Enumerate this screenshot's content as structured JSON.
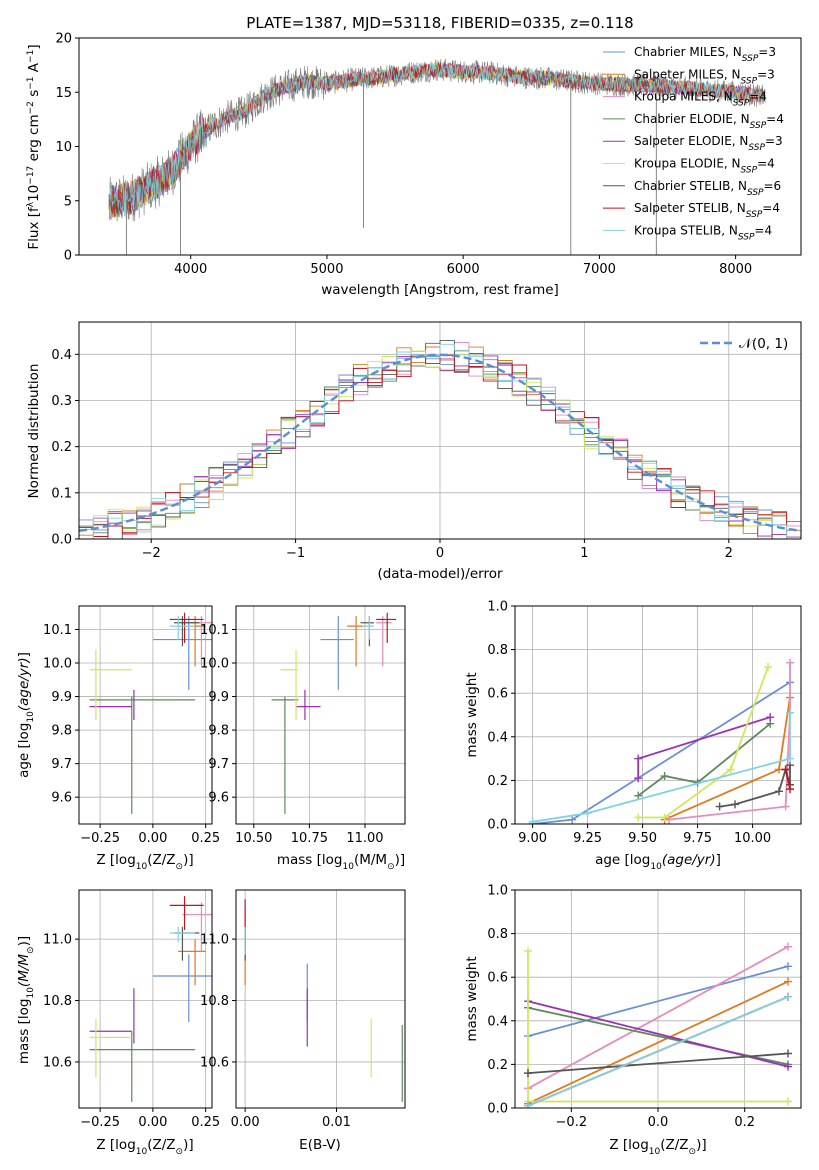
{
  "figure_title": "PLATE=1387, MJD=53118, FIBERID=0335, z=0.118",
  "colors": {
    "chabrier_miles": "#6a8fd8",
    "salpeter_miles": "#e07a1f",
    "kroupa_miles": "#e88bbf",
    "chabrier_elodie": "#5c8a5c",
    "salpeter_elodie": "#9b30b5",
    "kroupa_elodie": "#cfe85a",
    "chabrier_stelib": "#555555",
    "salpeter_stelib": "#c0151c",
    "kroupa_stelib": "#7fd3e0",
    "normal_curve": "#5b8ed6"
  },
  "legend": [
    {
      "key": "chabrier_miles",
      "pre": "Chabrier MILES, N",
      "sub": "SSP",
      "post": "=3"
    },
    {
      "key": "salpeter_miles",
      "pre": "Salpeter MILES, N",
      "sub": "SSP",
      "post": "=3"
    },
    {
      "key": "kroupa_miles",
      "pre": "Kroupa MILES, N",
      "sub": "SSP",
      "post": "=4"
    },
    {
      "key": "chabrier_elodie",
      "pre": "Chabrier ELODIE, N",
      "sub": "SSP",
      "post": "=4"
    },
    {
      "key": "salpeter_elodie",
      "pre": "Salpeter ELODIE, N",
      "sub": "SSP",
      "post": "=3"
    },
    {
      "key": "kroupa_elodie",
      "pre": "Kroupa ELODIE, N",
      "sub": "SSP",
      "post": "=4"
    },
    {
      "key": "chabrier_stelib",
      "pre": "Chabrier STELIB, N",
      "sub": "SSP",
      "post": "=6"
    },
    {
      "key": "salpeter_stelib",
      "pre": "Salpeter STELIB, N",
      "sub": "SSP",
      "post": "=4"
    },
    {
      "key": "kroupa_stelib",
      "pre": "Kroupa STELIB, N",
      "sub": "SSP",
      "post": "=4"
    }
  ],
  "chart_data": [
    {
      "type": "line",
      "name": "spectrum",
      "xlabel": "wavelength [Angstrom, rest frame]",
      "ylabel_parts": [
        "Flux [f",
        "λ",
        "10",
        "−17",
        " erg cm",
        "−2",
        " s",
        "−1",
        " A",
        "−1",
        "]"
      ],
      "xlim": [
        3180,
        8480
      ],
      "ylim": [
        0,
        20
      ],
      "xticks": [
        4000,
        5000,
        6000,
        7000,
        8000
      ],
      "yticks": [
        0,
        5,
        10,
        15,
        20
      ],
      "grid": false,
      "legend_position": "right",
      "continuum": {
        "x": [
          3400,
          3550,
          3700,
          3850,
          3950,
          4050,
          4150,
          4250,
          4400,
          4550,
          4700,
          4850,
          5000,
          5200,
          5400,
          5600,
          5800,
          6000,
          6200,
          6400,
          6600,
          6800,
          7000,
          7200,
          7400,
          7600,
          7800,
          8000,
          8200
        ],
        "y": [
          4.8,
          5.2,
          6.3,
          7.5,
          9.3,
          10.8,
          11.8,
          12.6,
          13.2,
          14.8,
          15.5,
          16.0,
          15.8,
          16.2,
          16.4,
          16.8,
          17.1,
          16.9,
          16.8,
          16.4,
          16.3,
          16.0,
          15.8,
          15.7,
          15.6,
          15.4,
          15.2,
          15.0,
          14.6
        ]
      },
      "dips": [
        {
          "x": 3528,
          "y": 0
        },
        {
          "x": 3925,
          "y": 0
        },
        {
          "x": 5268,
          "y": 2.5
        },
        {
          "x": 6790,
          "y": 0
        },
        {
          "x": 7418,
          "y": 0
        }
      ]
    },
    {
      "type": "histogram",
      "name": "residuals",
      "xlabel": "(data-model)/error",
      "ylabel": "Normed distribution",
      "xlim": [
        -2.5,
        2.5
      ],
      "ylim": [
        0,
        0.47
      ],
      "xticks": [
        -2,
        -1,
        0,
        1,
        2
      ],
      "yticks": [
        0,
        0.1,
        0.2,
        0.3,
        0.4
      ],
      "grid": true,
      "legend_position": "top-right",
      "legend_label": "𝒩(0, 1)",
      "bin_width": 0.1
    },
    {
      "type": "errorbar",
      "name": "age_vs_Z",
      "xlabel_parts": [
        "Z [log",
        "10",
        "(Z/Z",
        "⊙",
        ")]"
      ],
      "ylabel": "age  [log10(age/yr)]",
      "xlim": [
        -0.35,
        0.28
      ],
      "ylim": [
        9.52,
        10.17
      ],
      "xticks": [
        -0.25,
        0.0,
        0.25
      ],
      "yticks": [
        9.6,
        9.7,
        9.8,
        9.9,
        10.0,
        10.1
      ],
      "points": [
        {
          "key": "chabrier_miles",
          "x": 0.17,
          "xl": 0.0,
          "xh": 0.28,
          "y": 10.07,
          "yl": 9.92,
          "yh": 10.14
        },
        {
          "key": "salpeter_miles",
          "x": 0.2,
          "xl": 0.12,
          "xh": 0.25,
          "y": 10.11,
          "yl": 9.99,
          "yh": 10.14
        },
        {
          "key": "kroupa_miles",
          "x": 0.23,
          "xl": 0.14,
          "xh": 0.28,
          "y": 10.12,
          "yl": 9.99,
          "yh": 10.14
        },
        {
          "key": "chabrier_elodie",
          "x": -0.1,
          "xl": -0.3,
          "xh": 0.2,
          "y": 9.89,
          "yl": 9.55,
          "yh": 9.9
        },
        {
          "key": "salpeter_elodie",
          "x": -0.09,
          "xl": -0.3,
          "xh": -0.1,
          "y": 9.87,
          "yl": 9.83,
          "yh": 9.92
        },
        {
          "key": "kroupa_elodie",
          "x": -0.27,
          "xl": -0.3,
          "xh": -0.1,
          "y": 9.98,
          "yl": 9.83,
          "yh": 10.04
        },
        {
          "key": "chabrier_stelib",
          "x": 0.14,
          "xl": 0.1,
          "xh": 0.22,
          "y": 10.12,
          "yl": 10.05,
          "yh": 10.14
        },
        {
          "key": "salpeter_stelib",
          "x": 0.15,
          "xl": 0.08,
          "xh": 0.24,
          "y": 10.13,
          "yl": 10.06,
          "yh": 10.15
        },
        {
          "key": "kroupa_stelib",
          "x": 0.12,
          "xl": 0.08,
          "xh": 0.2,
          "y": 10.11,
          "yl": 10.07,
          "yh": 10.14
        }
      ]
    },
    {
      "type": "errorbar",
      "name": "age_vs_mass",
      "xlabel_parts": [
        "mass [log",
        "10",
        "(M/M",
        "⊙",
        ")]"
      ],
      "xlim": [
        10.42,
        11.18
      ],
      "ylim": [
        9.52,
        10.17
      ],
      "xticks": [
        10.5,
        10.75,
        11.0
      ],
      "xticklabels": [
        "10.50",
        "10.75",
        "11.00"
      ],
      "yticks": [
        9.6,
        9.7,
        9.8,
        9.9,
        10.0,
        10.1
      ],
      "points": [
        {
          "key": "chabrier_miles",
          "x": 10.88,
          "xl": 10.8,
          "xh": 10.95,
          "y": 10.07,
          "yl": 9.92,
          "yh": 10.14
        },
        {
          "key": "salpeter_miles",
          "x": 10.96,
          "xl": 10.92,
          "xh": 11.0,
          "y": 10.11,
          "yl": 9.99,
          "yh": 10.14
        },
        {
          "key": "kroupa_miles",
          "x": 11.08,
          "xl": 11.05,
          "xh": 11.12,
          "y": 10.12,
          "yl": 9.99,
          "yh": 10.14
        },
        {
          "key": "chabrier_elodie",
          "x": 10.64,
          "xl": 10.58,
          "xh": 10.7,
          "y": 9.89,
          "yl": 9.55,
          "yh": 9.9
        },
        {
          "key": "salpeter_elodie",
          "x": 10.73,
          "xl": 10.69,
          "xh": 10.8,
          "y": 9.87,
          "yl": 9.83,
          "yh": 9.92
        },
        {
          "key": "kroupa_elodie",
          "x": 10.69,
          "xl": 10.62,
          "xh": 10.7,
          "y": 9.98,
          "yl": 9.83,
          "yh": 10.04
        },
        {
          "key": "chabrier_stelib",
          "x": 11.02,
          "xl": 10.98,
          "xh": 11.04,
          "y": 10.12,
          "yl": 10.05,
          "yh": 10.14
        },
        {
          "key": "salpeter_stelib",
          "x": 11.1,
          "xl": 11.05,
          "xh": 11.14,
          "y": 10.13,
          "yl": 10.06,
          "yh": 10.15
        },
        {
          "key": "kroupa_stelib",
          "x": 11.02,
          "xl": 10.99,
          "xh": 11.04,
          "y": 10.11,
          "yl": 10.07,
          "yh": 10.14
        }
      ]
    },
    {
      "type": "line",
      "name": "mass_weight_vs_age",
      "xlabel": "age  [log10(age/yr)]",
      "ylabel": "mass weight",
      "xlim": [
        8.92,
        10.22
      ],
      "ylim": [
        0,
        1
      ],
      "xticks": [
        9.0,
        9.25,
        9.5,
        9.75,
        10.0
      ],
      "xticklabels": [
        "9.00",
        "9.25",
        "9.50",
        "9.75",
        "10.00"
      ],
      "yticks": [
        0,
        0.2,
        0.4,
        0.6,
        0.8,
        1.0
      ],
      "series": [
        {
          "key": "chabrier_miles",
          "x": [
            9.0,
            9.18,
            10.17
          ],
          "y": [
            0.0,
            0.02,
            0.65
          ]
        },
        {
          "key": "salpeter_miles",
          "x": [
            9.6,
            10.12,
            10.17
          ],
          "y": [
            0.02,
            0.25,
            0.58
          ]
        },
        {
          "key": "kroupa_miles",
          "x": [
            9.62,
            10.15,
            10.17,
            10.17
          ],
          "y": [
            0.02,
            0.08,
            0.51,
            0.74
          ]
        },
        {
          "key": "chabrier_elodie",
          "x": [
            9.48,
            9.6,
            9.75,
            10.08
          ],
          "y": [
            0.13,
            0.22,
            0.19,
            0.46
          ]
        },
        {
          "key": "salpeter_elodie",
          "x": [
            9.48,
            9.48,
            10.08
          ],
          "y": [
            0.21,
            0.3,
            0.49
          ]
        },
        {
          "key": "kroupa_elodie",
          "x": [
            9.48,
            9.6,
            9.9,
            10.07
          ],
          "y": [
            0.03,
            0.03,
            0.25,
            0.72
          ]
        },
        {
          "key": "chabrier_stelib",
          "x": [
            9.85,
            9.92,
            10.12,
            10.15,
            10.17,
            10.17
          ],
          "y": [
            0.08,
            0.09,
            0.15,
            0.25,
            0.18,
            0.27
          ]
        },
        {
          "key": "salpeter_stelib",
          "x": [
            10.15,
            10.17
          ],
          "y": [
            0.25,
            0.16
          ]
        },
        {
          "key": "kroupa_stelib",
          "x": [
            9.0,
            9.25,
            10.17,
            10.17
          ],
          "y": [
            0.01,
            0.05,
            0.3,
            0.51
          ]
        }
      ]
    },
    {
      "type": "errorbar",
      "name": "mass_vs_Z",
      "xlabel_parts": [
        "Z [log",
        "10",
        "(Z/Z",
        "⊙",
        ")]"
      ],
      "ylabel": "mass [log10(M/M⊙)]",
      "xlim": [
        -0.35,
        0.28
      ],
      "ylim": [
        10.45,
        11.16
      ],
      "xticks": [
        -0.25,
        0.0,
        0.25
      ],
      "yticks": [
        10.6,
        10.8,
        11.0
      ],
      "points": [
        {
          "key": "chabrier_miles",
          "x": 0.17,
          "xl": 0.0,
          "xh": 0.28,
          "y": 10.88,
          "yl": 10.73,
          "yh": 10.95
        },
        {
          "key": "salpeter_miles",
          "x": 0.2,
          "xl": 0.12,
          "xh": 0.25,
          "y": 10.96,
          "yl": 10.85,
          "yh": 11.0
        },
        {
          "key": "kroupa_miles",
          "x": 0.23,
          "xl": 0.14,
          "xh": 0.28,
          "y": 11.08,
          "yl": 10.96,
          "yh": 11.12
        },
        {
          "key": "chabrier_elodie",
          "x": -0.1,
          "xl": -0.3,
          "xh": 0.2,
          "y": 10.64,
          "yl": 10.47,
          "yh": 10.7
        },
        {
          "key": "salpeter_elodie",
          "x": -0.09,
          "xl": -0.3,
          "xh": -0.1,
          "y": 10.7,
          "yl": 10.66,
          "yh": 10.84
        },
        {
          "key": "kroupa_elodie",
          "x": -0.27,
          "xl": -0.3,
          "xh": -0.1,
          "y": 10.68,
          "yl": 10.55,
          "yh": 10.74
        },
        {
          "key": "chabrier_stelib",
          "x": 0.14,
          "xl": 0.1,
          "xh": 0.22,
          "y": 11.02,
          "yl": 10.93,
          "yh": 11.04
        },
        {
          "key": "salpeter_stelib",
          "x": 0.15,
          "xl": 0.08,
          "xh": 0.24,
          "y": 11.11,
          "yl": 11.03,
          "yh": 11.14
        },
        {
          "key": "kroupa_stelib",
          "x": 0.12,
          "xl": 0.08,
          "xh": 0.2,
          "y": 11.02,
          "yl": 10.99,
          "yh": 11.04
        }
      ]
    },
    {
      "type": "errorbar",
      "name": "mass_vs_ebv",
      "xlabel": "E(B-V)",
      "xlim": [
        -0.001,
        0.0175
      ],
      "ylim": [
        10.45,
        11.16
      ],
      "xticks": [
        0.0,
        0.01
      ],
      "xticklabels": [
        "0.00",
        "0.01"
      ],
      "yticks": [
        10.6,
        10.8,
        11.0
      ],
      "points": [
        {
          "key": "chabrier_miles",
          "x": 0.0068,
          "y": 10.88,
          "yl": 10.73,
          "yh": 10.92
        },
        {
          "key": "salpeter_elodie",
          "x": 0.0068,
          "y": 10.7,
          "yl": 10.65,
          "yh": 10.84
        },
        {
          "key": "kroupa_elodie",
          "x": 0.0138,
          "y": 10.68,
          "yl": 10.55,
          "yh": 10.74
        },
        {
          "key": "chabrier_elodie",
          "x": 0.0172,
          "y": 10.64,
          "yl": 10.47,
          "yh": 10.72
        },
        {
          "key": "salpeter_miles",
          "x": 0.0,
          "y": 10.96,
          "yl": 10.85,
          "yh": 11.0
        },
        {
          "key": "kroupa_miles",
          "x": 0.0,
          "y": 11.08,
          "yl": 10.96,
          "yh": 11.1
        },
        {
          "key": "chabrier_stelib",
          "x": 0.0,
          "y": 11.02,
          "yl": 10.93,
          "yh": 11.04
        },
        {
          "key": "salpeter_stelib",
          "x": 0.0,
          "y": 11.05,
          "yl": 10.97,
          "yh": 11.13
        },
        {
          "key": "kroupa_stelib",
          "x": 0.0,
          "y": 11.0,
          "yl": 10.95,
          "yh": 11.04
        }
      ]
    },
    {
      "type": "line",
      "name": "mass_weight_vs_Z",
      "xlabel_parts": [
        "Z [log",
        "10",
        "(Z/Z",
        "⊙",
        ")]"
      ],
      "ylabel": "mass weight",
      "xlim": [
        -0.33,
        0.33
      ],
      "ylim": [
        0,
        1
      ],
      "xticks": [
        -0.2,
        0.0,
        0.2
      ],
      "yticks": [
        0,
        0.2,
        0.4,
        0.6,
        0.8,
        1.0
      ],
      "series": [
        {
          "key": "chabrier_miles",
          "x": [
            -0.3,
            0.3
          ],
          "y": [
            0.33,
            0.65
          ]
        },
        {
          "key": "salpeter_miles",
          "x": [
            -0.3,
            0.3
          ],
          "y": [
            0.02,
            0.58
          ]
        },
        {
          "key": "kroupa_miles",
          "x": [
            -0.3,
            0.3
          ],
          "y": [
            0.09,
            0.74
          ]
        },
        {
          "key": "chabrier_elodie",
          "x": [
            -0.3,
            0.3
          ],
          "y": [
            0.46,
            0.2
          ]
        },
        {
          "key": "salpeter_elodie",
          "x": [
            -0.3,
            0.3
          ],
          "y": [
            0.49,
            0.19
          ]
        },
        {
          "key": "kroupa_elodie",
          "x": [
            -0.3,
            -0.3,
            0.3
          ],
          "y": [
            0.72,
            0.03,
            0.03
          ]
        },
        {
          "key": "chabrier_stelib",
          "x": [
            -0.3,
            0.3
          ],
          "y": [
            0.16,
            0.25
          ]
        },
        {
          "key": "salpeter_stelib",
          "x": [
            -0.3,
            0.3
          ],
          "y": [
            0.01,
            0.51
          ]
        },
        {
          "key": "kroupa_stelib",
          "x": [
            -0.3,
            0.3
          ],
          "y": [
            0.01,
            0.51
          ]
        }
      ]
    }
  ]
}
